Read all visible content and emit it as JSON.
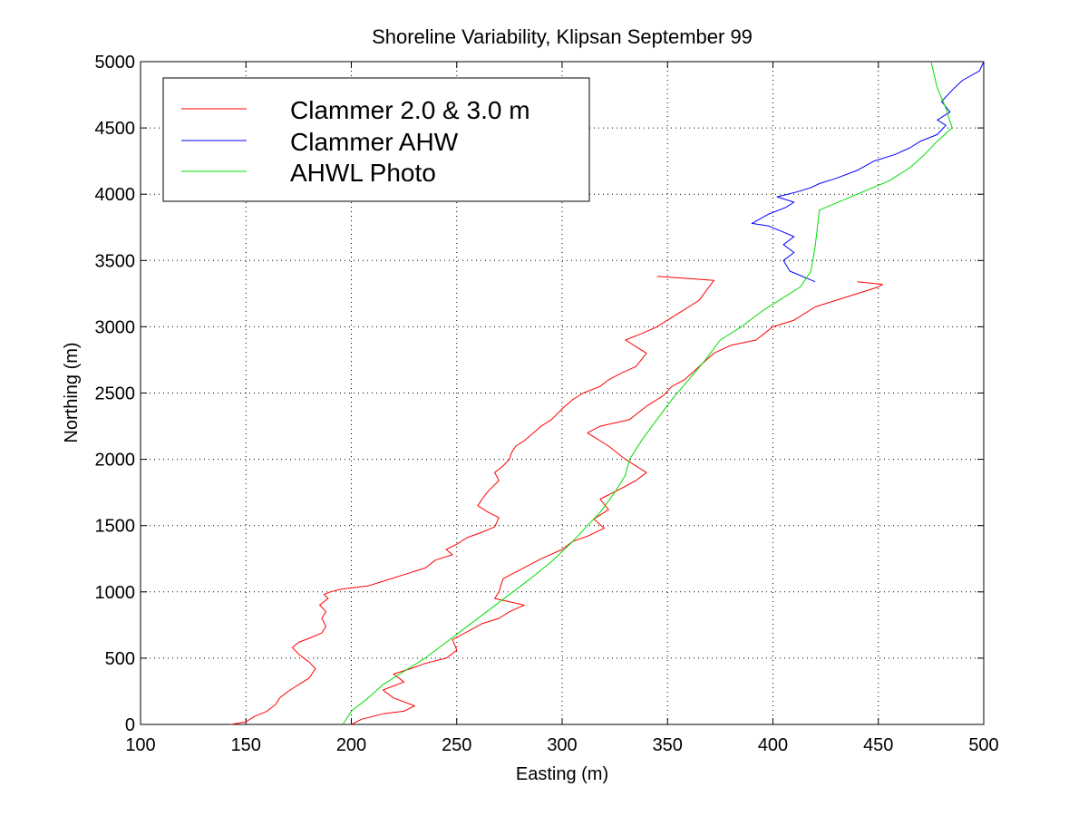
{
  "chart_data": {
    "type": "line",
    "title": "Shoreline Variability, Klipsan September 99",
    "xlabel": "Easting (m)",
    "ylabel": "Northing (m)",
    "xlim": [
      100,
      500
    ],
    "ylim": [
      0,
      5000
    ],
    "xticks": [
      100,
      150,
      200,
      250,
      300,
      350,
      400,
      450,
      500
    ],
    "yticks": [
      0,
      500,
      1000,
      1500,
      2000,
      2500,
      3000,
      3500,
      4000,
      4500,
      5000
    ],
    "grid": true,
    "legend_position": "top-left",
    "series": [
      {
        "name": "Clammer 2.0 & 3.0 m",
        "color": "#ff0000",
        "segments": [
          {
            "x": [
              143,
              150,
              154,
              160,
              164,
              166,
              170,
              175,
              180,
              183,
              180,
              175,
              172,
              175,
              180,
              186,
              188,
              186,
              188,
              185,
              189,
              187,
              190,
              195,
              200,
              208,
              215,
              225,
              235,
              240,
              248,
              245,
              250,
              255,
              262,
              268,
              270,
              265,
              260,
              262,
              265,
              270,
              268,
              272,
              275,
              276,
              278,
              282,
              285,
              290,
              295,
              300,
              305,
              310,
              318,
              322,
              328,
              335,
              340,
              335,
              330,
              338,
              345,
              355,
              365,
              372,
              345
            ],
            "y": [
              0,
              20,
              60,
              100,
              150,
              200,
              250,
              300,
              350,
              420,
              470,
              530,
              580,
              620,
              650,
              690,
              740,
              800,
              850,
              900,
              950,
              980,
              1000,
              1020,
              1030,
              1045,
              1080,
              1130,
              1180,
              1240,
              1280,
              1320,
              1360,
              1410,
              1450,
              1490,
              1560,
              1600,
              1650,
              1700,
              1760,
              1840,
              1900,
              1950,
              2000,
              2050,
              2100,
              2140,
              2180,
              2250,
              2300,
              2380,
              2450,
              2500,
              2550,
              2600,
              2650,
              2700,
              2800,
              2850,
              2900,
              2950,
              3000,
              3100,
              3200,
              3350,
              3380
            ]
          },
          {
            "x": [
              200,
              205,
              215,
              225,
              230,
              220,
              215,
              225,
              220,
              228,
              235,
              245,
              250,
              248,
              255,
              262,
              270,
              275,
              282,
              268,
              270,
              272,
              278,
              290,
              300,
              305,
              312,
              320,
              315,
              322,
              318,
              328,
              335,
              340,
              330,
              322,
              312,
              318,
              332,
              340,
              348,
              352,
              358,
              365,
              372,
              380,
              392,
              396,
              400,
              410,
              420,
              450,
              452,
              440
            ],
            "y": [
              0,
              40,
              80,
              100,
              140,
              200,
              260,
              320,
              380,
              420,
              460,
              500,
              560,
              640,
              700,
              760,
              800,
              850,
              900,
              950,
              1000,
              1100,
              1150,
              1250,
              1320,
              1380,
              1420,
              1480,
              1550,
              1620,
              1700,
              1780,
              1840,
              1900,
              2000,
              2100,
              2200,
              2250,
              2300,
              2400,
              2480,
              2550,
              2600,
              2700,
              2800,
              2860,
              2900,
              2950,
              3000,
              3050,
              3150,
              3300,
              3320,
              3340
            ]
          }
        ]
      },
      {
        "name": "Clammer AHW",
        "color": "#0000ff",
        "segments": [
          {
            "x": [
              420,
              408,
              405,
              410,
              405,
              410,
              404,
              398,
              390,
              398,
              406,
              410,
              402,
              412,
              418,
              422,
              430,
              440,
              448,
              458,
              465,
              470,
              478,
              482,
              478,
              484,
              480,
              486,
              490,
              498,
              500
            ],
            "y": [
              3340,
              3420,
              3500,
              3560,
              3620,
              3680,
              3720,
              3760,
              3780,
              3850,
              3900,
              3940,
              3980,
              4020,
              4050,
              4080,
              4120,
              4180,
              4250,
              4300,
              4350,
              4400,
              4450,
              4520,
              4560,
              4620,
              4700,
              4800,
              4860,
              4930,
              5000
            ]
          }
        ]
      },
      {
        "name": "AHWL Photo",
        "color": "#00dd00",
        "segments": [
          {
            "x": [
              196,
              200,
              208,
              215,
              225,
              235,
              245,
              255,
              265,
              275,
              285,
              295,
              305,
              312,
              318,
              325,
              330,
              332,
              338,
              345,
              352,
              360,
              368,
              375,
              385,
              395,
              405,
              413,
              418,
              420,
              422,
              425,
              440,
              455,
              465,
              472,
              478,
              485,
              482,
              478,
              475
            ],
            "y": [
              0,
              100,
              200,
              300,
              400,
              500,
              620,
              740,
              860,
              980,
              1100,
              1230,
              1380,
              1500,
              1600,
              1750,
              1880,
              2000,
              2150,
              2300,
              2450,
              2600,
              2750,
              2900,
              3000,
              3120,
              3220,
              3300,
              3420,
              3600,
              3880,
              3900,
              4000,
              4100,
              4200,
              4300,
              4400,
              4500,
              4650,
              4800,
              5000
            ]
          }
        ]
      }
    ]
  }
}
